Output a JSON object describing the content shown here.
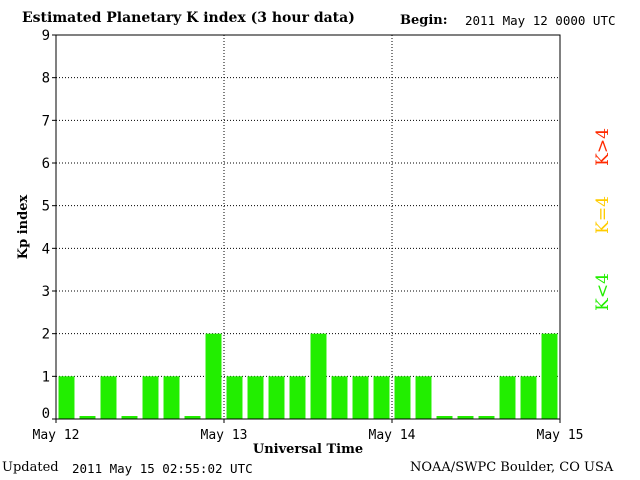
{
  "header": {
    "title": "Estimated Planetary K index (3 hour data)",
    "begin_label": "Begin:",
    "begin_value": "2011 May 12 0000 UTC"
  },
  "footer": {
    "updated_label": "Updated",
    "updated_value": "2011 May 15 02:55:02 UTC",
    "source": "NOAA/SWPC Boulder, CO USA"
  },
  "legend": {
    "high": {
      "label": "K>4",
      "color": "#ff2a00"
    },
    "mid": {
      "label": "K=4",
      "color": "#ffcc00"
    },
    "low": {
      "label": "K<4",
      "color": "#22ee00"
    }
  },
  "chart_data": {
    "type": "bar",
    "title": "Estimated Planetary K index (3 hour data)",
    "xlabel": "Universal Time",
    "ylabel": "Kp index",
    "ylim": [
      0,
      9
    ],
    "yticks": [
      "0",
      "1",
      "2",
      "3",
      "4",
      "5",
      "6",
      "7",
      "8",
      "9"
    ],
    "xtick_labels": [
      "May 12",
      "May 13",
      "May 14",
      "May 15"
    ],
    "grid": true,
    "bar_color": "#22ee00",
    "values": [
      1,
      0,
      1,
      0,
      1,
      1,
      0,
      2,
      1,
      1,
      1,
      1,
      2,
      1,
      1,
      1,
      1,
      1,
      0,
      0,
      0,
      1,
      1,
      2
    ]
  }
}
